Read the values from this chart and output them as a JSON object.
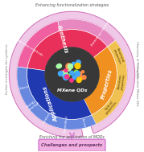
{
  "bg_color": "#ffffff",
  "title": "MXene QDs",
  "top_label": "Enhancing functionalization strategies",
  "bottom_label": "Enriching the application of MQDs",
  "bottom_box_label": "Challenges and prospects",
  "left_label_top": "Further investigate the synthesis",
  "right_label_top": "Chemistry of MXene QDs",
  "right_label_bot": "Explore other MXene QDs",
  "synthesis_label": "Synthesis",
  "properties_label": "Properties",
  "applications_label": "Applications",
  "synthesis_sub": [
    "Top-down methods",
    "Bottom-up method"
  ],
  "properties_sub": [
    "Structural\nproperties",
    "Electronic\nproperties",
    "Optical\nproperties"
  ],
  "applications_sub": [
    "Sensing",
    "Biomedical",
    "Catalysis",
    "Energy\n storage",
    "Others"
  ],
  "outer_ring_fc": "#f0c8e8",
  "outer_ring_ec": "#d070b8",
  "synth_outer_fc": "#f060a0",
  "synth_outer_fc2": "#e888c0",
  "prop_outer_fc": "#f0c050",
  "app_outer_fc": "#6888e0",
  "synth_inner_fc": "#e8305a",
  "prop_inner_fc": "#f09020",
  "app_inner_fc": "#2038b0",
  "center_fc": "#383838",
  "dot_colors": [
    "#88ee44",
    "#ffcc00",
    "#ff3388",
    "#44aaff",
    "#aaffaa",
    "#ff8844"
  ],
  "arrow_color": "#cc66cc",
  "box_fc": "#f0b0e0",
  "box_ec": "#cc66cc"
}
